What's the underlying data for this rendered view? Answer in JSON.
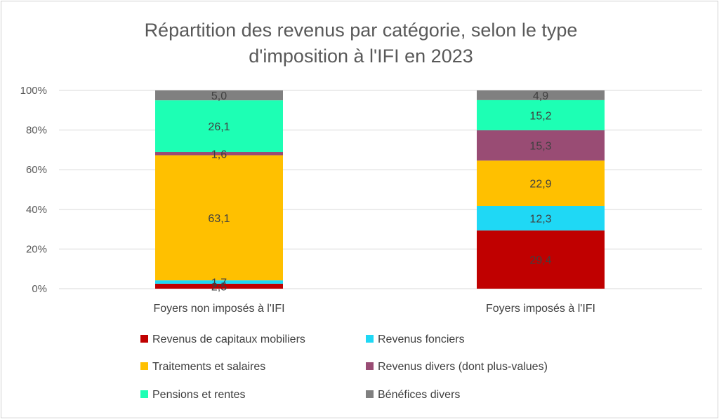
{
  "chart_data": {
    "type": "bar",
    "stacked": true,
    "percent": true,
    "title": "Répartition des revenus par catégorie, selon le type d'imposition à l'IFI en 2023",
    "title_lines": [
      "Répartition des revenus par catégorie, selon le type",
      "d'imposition à l'IFI en 2023"
    ],
    "categories": [
      "Foyers non imposés à l'IFI",
      "Foyers imposés à l'IFI"
    ],
    "ylim": [
      0,
      100
    ],
    "yticks": [
      "0%",
      "20%",
      "40%",
      "60%",
      "80%",
      "100%"
    ],
    "grid": true,
    "legend_position": "bottom",
    "series": [
      {
        "name": "Revenus de capitaux mobiliers",
        "color": "#C00000",
        "values": [
          2.5,
          29.4
        ],
        "labels": [
          "2,5",
          "29,4"
        ]
      },
      {
        "name": "Revenus fonciers",
        "color": "#1FD8F5",
        "values": [
          1.7,
          12.3
        ],
        "labels": [
          "1,7",
          "12,3"
        ]
      },
      {
        "name": "Traitements et salaires",
        "color": "#FFC000",
        "values": [
          63.1,
          22.9
        ],
        "labels": [
          "63,1",
          "22,9"
        ]
      },
      {
        "name": "Revenus divers (dont plus-values)",
        "color": "#994C74",
        "values": [
          1.6,
          15.3
        ],
        "labels": [
          "1,6",
          "15,3"
        ]
      },
      {
        "name": "Pensions et rentes",
        "color": "#1DFFB4",
        "values": [
          26.1,
          15.2
        ],
        "labels": [
          "26,1",
          "15,2"
        ]
      },
      {
        "name": "Bénéfices divers",
        "color": "#808080",
        "values": [
          5.0,
          4.9
        ],
        "labels": [
          "5,0",
          "4,9"
        ]
      }
    ]
  }
}
